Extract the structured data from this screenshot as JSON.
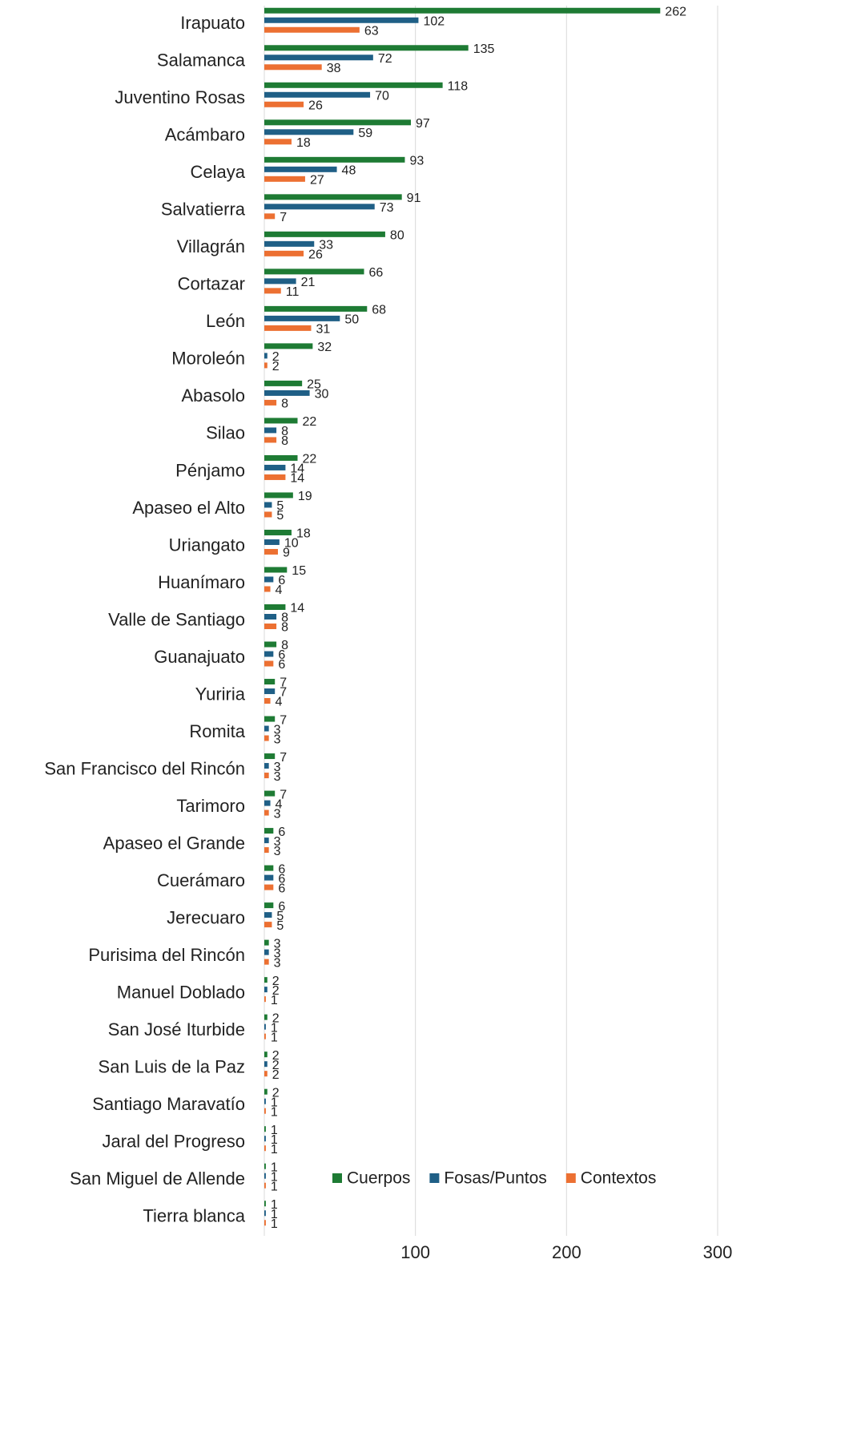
{
  "chart_data": {
    "type": "bar",
    "orientation": "horizontal",
    "categories": [
      "Irapuato",
      "Salamanca",
      "Juventino Rosas",
      "Acámbaro",
      "Celaya",
      "Salvatierra",
      "Villagrán",
      "Cortazar",
      "León",
      "Moroleón",
      "Abasolo",
      "Silao",
      "Pénjamo",
      "Apaseo el Alto",
      "Uriangato",
      "Huanímaro",
      "Valle de Santiago",
      "Guanajuato",
      "Yuriria",
      "Romita",
      "San Francisco del Rincón",
      "Tarimoro",
      "Apaseo el Grande",
      "Cuerámaro",
      "Jerecuaro",
      "Purisima del Rincón",
      "Manuel Doblado",
      "San José Iturbide",
      "San Luis de la Paz",
      "Santiago Maravatío",
      "Jaral del Progreso",
      "San Miguel de Allende",
      "Tierra blanca"
    ],
    "series": [
      {
        "name": "Cuerpos",
        "color": "#1e7b34",
        "values": [
          262,
          135,
          118,
          97,
          93,
          91,
          80,
          66,
          68,
          32,
          25,
          22,
          22,
          19,
          18,
          15,
          14,
          8,
          7,
          7,
          7,
          7,
          6,
          6,
          6,
          3,
          2,
          2,
          2,
          2,
          1,
          1,
          1
        ]
      },
      {
        "name": "Fosas/Puntos",
        "color": "#1f5f86",
        "values": [
          102,
          72,
          70,
          59,
          48,
          73,
          33,
          21,
          50,
          2,
          30,
          8,
          14,
          5,
          10,
          6,
          8,
          6,
          7,
          3,
          3,
          4,
          3,
          6,
          5,
          3,
          2,
          1,
          2,
          1,
          1,
          1,
          1
        ]
      },
      {
        "name": "Contextos",
        "color": "#ec7032",
        "values": [
          63,
          38,
          26,
          18,
          27,
          7,
          26,
          11,
          31,
          2,
          8,
          8,
          14,
          5,
          9,
          4,
          8,
          6,
          4,
          3,
          3,
          3,
          3,
          6,
          5,
          3,
          1,
          1,
          2,
          1,
          1,
          1,
          1
        ]
      }
    ],
    "xlim": [
      0,
      300
    ],
    "xticks": [
      100,
      200,
      300
    ],
    "grid": true,
    "legend": "bottom-right"
  }
}
